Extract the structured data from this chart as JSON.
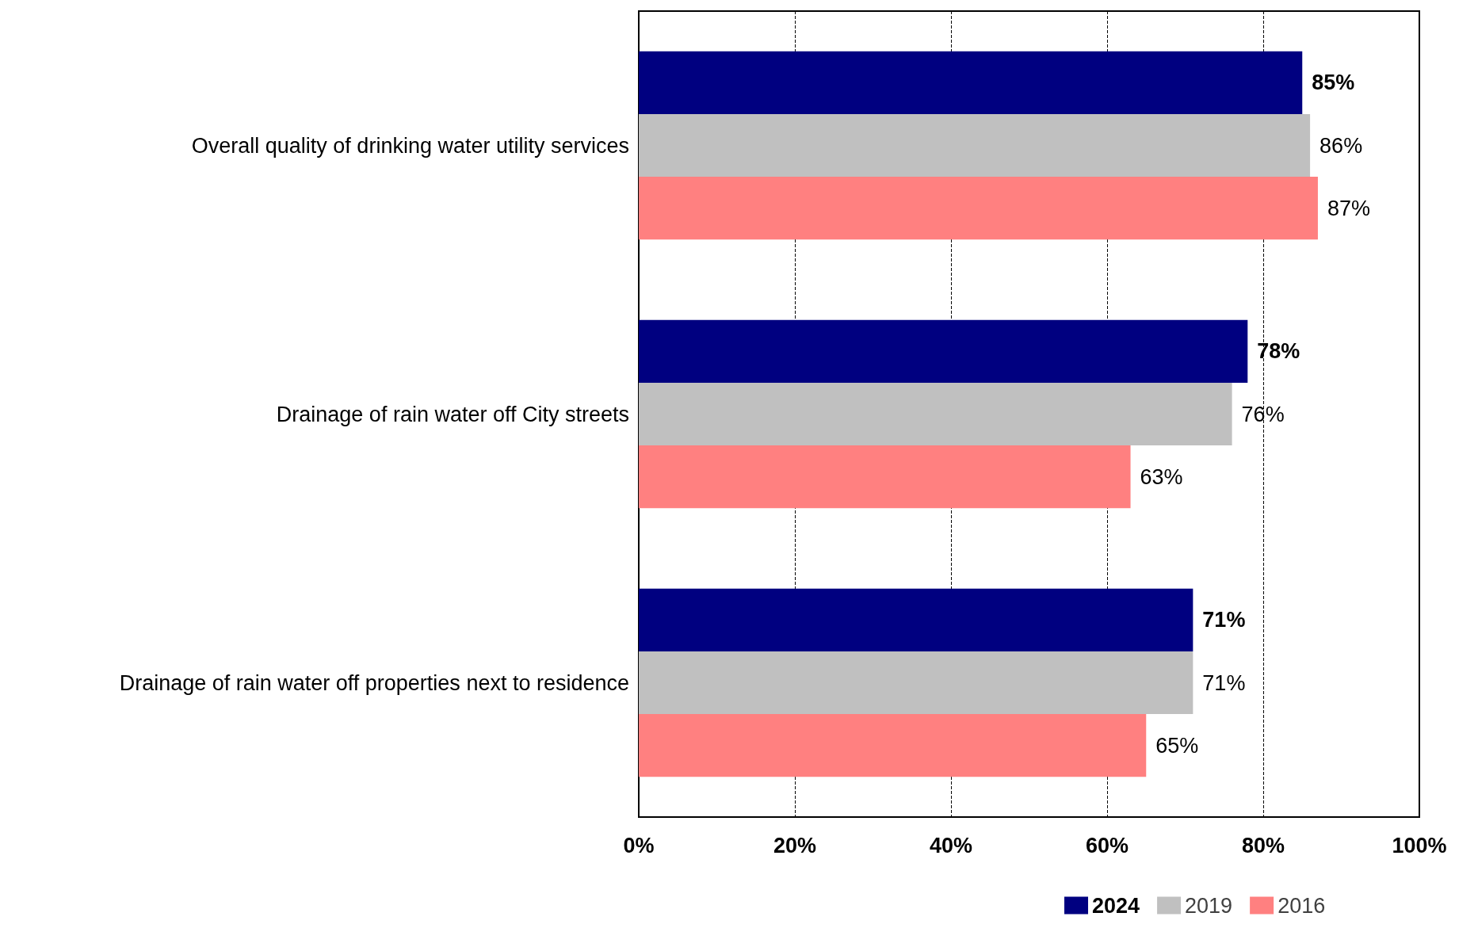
{
  "chart_data": {
    "type": "bar",
    "orientation": "horizontal",
    "categories": [
      "Overall quality of drinking water utility services",
      "Drainage of rain water off City streets",
      "Drainage of rain water off properties next to residence"
    ],
    "series": [
      {
        "name": "2024",
        "color": "#000080",
        "values": [
          85,
          78,
          71
        ],
        "value_labels": [
          "85%",
          "78%",
          "71%"
        ]
      },
      {
        "name": "2019",
        "color": "#c0c0c0",
        "values": [
          86,
          76,
          71
        ],
        "value_labels": [
          "86%",
          "76%",
          "71%"
        ]
      },
      {
        "name": "2016",
        "color": "#ff8080",
        "values": [
          87,
          63,
          65
        ],
        "value_labels": [
          "87%",
          "63%",
          "65%"
        ]
      }
    ],
    "xlim": [
      0,
      100
    ],
    "xticks": [
      {
        "value": 0,
        "label": "0%"
      },
      {
        "value": 20,
        "label": "20%"
      },
      {
        "value": 40,
        "label": "40%"
      },
      {
        "value": 60,
        "label": "60%"
      },
      {
        "value": 80,
        "label": "80%"
      },
      {
        "value": 100,
        "label": "100%"
      }
    ],
    "grid": "x",
    "legend": "bottom"
  }
}
